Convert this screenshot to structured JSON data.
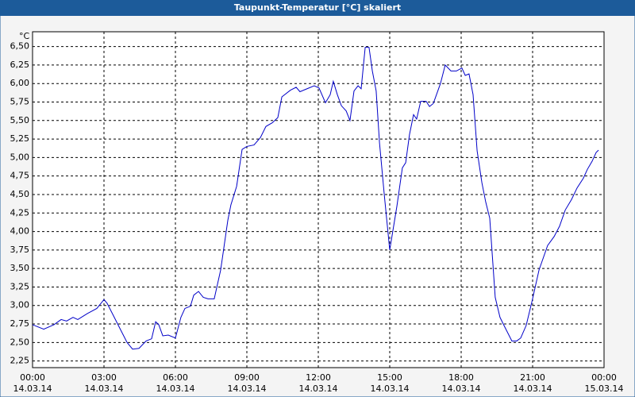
{
  "chart_data": {
    "type": "line",
    "title": "Taupunkt-Temperatur [°C] skaliert",
    "y_unit": "°C",
    "x": [
      0,
      0.47,
      0.9,
      1.2,
      1.43,
      1.7,
      1.9,
      2.3,
      2.7,
      3.0,
      3.13,
      3.4,
      3.7,
      3.97,
      4.2,
      4.47,
      4.77,
      5.0,
      5.17,
      5.3,
      5.47,
      5.7,
      6.0,
      6.23,
      6.4,
      6.63,
      6.77,
      6.97,
      7.17,
      7.37,
      7.63,
      7.9,
      8.2,
      8.33,
      8.57,
      8.8,
      9.0,
      9.3,
      9.57,
      9.8,
      10.07,
      10.3,
      10.47,
      10.83,
      11.07,
      11.23,
      11.53,
      11.83,
      12.03,
      12.3,
      12.5,
      12.63,
      12.8,
      12.97,
      13.17,
      13.33,
      13.5,
      13.67,
      13.8,
      13.97,
      14.13,
      14.27,
      14.43,
      14.57,
      14.77,
      15.0,
      15.3,
      15.53,
      15.67,
      15.83,
      16.0,
      16.13,
      16.3,
      16.53,
      16.67,
      16.83,
      17.13,
      17.33,
      17.57,
      17.8,
      18.03,
      18.17,
      18.33,
      18.5,
      18.67,
      18.87,
      19.03,
      19.2,
      19.43,
      19.63,
      19.83,
      20.13,
      20.33,
      20.5,
      20.73,
      20.97,
      21.27,
      21.63,
      21.9,
      22.13,
      22.37,
      22.63,
      22.87,
      23.13,
      23.3,
      23.5,
      23.67,
      23.77
    ],
    "series": [
      {
        "color": "#0000c8",
        "values": [
          2.74,
          2.68,
          2.74,
          2.81,
          2.79,
          2.84,
          2.81,
          2.89,
          2.96,
          3.08,
          3.03,
          2.86,
          2.67,
          2.5,
          2.41,
          2.42,
          2.52,
          2.55,
          2.78,
          2.74,
          2.59,
          2.6,
          2.56,
          2.84,
          2.96,
          2.99,
          3.14,
          3.19,
          3.11,
          3.09,
          3.09,
          3.48,
          4.15,
          4.36,
          4.61,
          5.11,
          5.15,
          5.17,
          5.27,
          5.42,
          5.47,
          5.54,
          5.82,
          5.91,
          5.95,
          5.89,
          5.93,
          5.97,
          5.94,
          5.74,
          5.85,
          6.03,
          5.85,
          5.7,
          5.63,
          5.5,
          5.9,
          5.97,
          5.93,
          6.49,
          6.49,
          6.17,
          5.9,
          5.2,
          4.5,
          3.75,
          4.34,
          4.86,
          4.93,
          5.31,
          5.58,
          5.52,
          5.76,
          5.76,
          5.69,
          5.73,
          6.0,
          6.25,
          6.17,
          6.17,
          6.21,
          6.11,
          6.13,
          5.85,
          5.09,
          4.66,
          4.4,
          4.18,
          3.11,
          2.84,
          2.71,
          2.52,
          2.52,
          2.56,
          2.73,
          3.05,
          3.48,
          3.81,
          3.93,
          4.07,
          4.29,
          4.43,
          4.59,
          4.72,
          4.84,
          4.95,
          5.07,
          5.1
        ]
      }
    ],
    "xlim": [
      0,
      24
    ],
    "xticks": [
      {
        "value": 0,
        "label": "00:00"
      },
      {
        "value": 3,
        "label": "03:00"
      },
      {
        "value": 6,
        "label": "06:00"
      },
      {
        "value": 9,
        "label": "09:00"
      },
      {
        "value": 12,
        "label": "12:00"
      },
      {
        "value": 15,
        "label": "15:00"
      },
      {
        "value": 18,
        "label": "18:00"
      },
      {
        "value": 21,
        "label": "21:00"
      },
      {
        "value": 24,
        "label": "00:00"
      }
    ],
    "xtick_dates": [
      "14.03.14",
      "14.03.14",
      "14.03.14",
      "14.03.14",
      "14.03.14",
      "14.03.14",
      "14.03.14",
      "14.03.14",
      "15.03.14"
    ],
    "ylim": [
      2.16,
      6.7
    ],
    "yticks": [
      {
        "value": 2.25,
        "label": "2,25"
      },
      {
        "value": 2.5,
        "label": "2,50"
      },
      {
        "value": 2.75,
        "label": "2,75"
      },
      {
        "value": 3,
        "label": "3,00"
      },
      {
        "value": 3.25,
        "label": "3,25"
      },
      {
        "value": 3.5,
        "label": "3,50"
      },
      {
        "value": 3.75,
        "label": "3,75"
      },
      {
        "value": 4,
        "label": "4,00"
      },
      {
        "value": 4.25,
        "label": "4,25"
      },
      {
        "value": 4.5,
        "label": "4,50"
      },
      {
        "value": 4.75,
        "label": "4,75"
      },
      {
        "value": 5,
        "label": "5,00"
      },
      {
        "value": 5.25,
        "label": "5,25"
      },
      {
        "value": 5.5,
        "label": "5,50"
      },
      {
        "value": 5.75,
        "label": "5,75"
      },
      {
        "value": 6,
        "label": "6,00"
      },
      {
        "value": 6.25,
        "label": "6,25"
      },
      {
        "value": 6.5,
        "label": "6,50"
      }
    ],
    "grid": true
  }
}
